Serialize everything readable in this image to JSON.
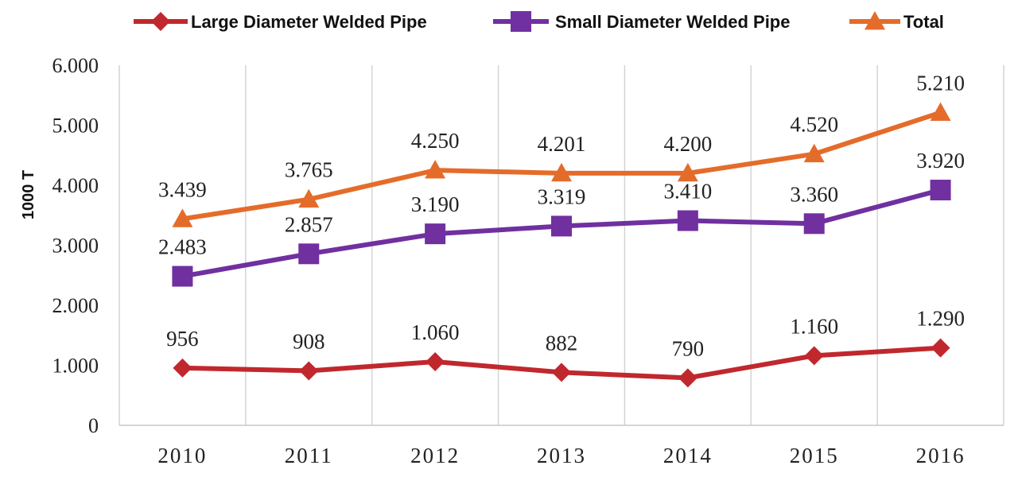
{
  "chart_data": {
    "type": "line",
    "title": "",
    "xlabel": "",
    "ylabel": "1000 T",
    "categories": [
      "2010",
      "2011",
      "2012",
      "2013",
      "2014",
      "2015",
      "2016"
    ],
    "ylim": [
      0,
      6000
    ],
    "yticks": [
      0,
      1000,
      2000,
      3000,
      4000,
      5000,
      6000
    ],
    "ytick_labels": [
      "0",
      "1.000",
      "2.000",
      "3.000",
      "4.000",
      "5.000",
      "6.000"
    ],
    "grid": "vertical",
    "legend_position": "top",
    "series": [
      {
        "name": "Large Diameter Welded Pipe",
        "color": "#c0282d",
        "marker": "diamond",
        "values": [
          956,
          908,
          1060,
          882,
          790,
          1160,
          1290
        ],
        "labels": [
          "956",
          "908",
          "1.060",
          "882",
          "790",
          "1.160",
          "1.290"
        ]
      },
      {
        "name": "Small Diameter Welded Pipe",
        "color": "#7030a0",
        "marker": "square",
        "values": [
          2483,
          2857,
          3190,
          3319,
          3410,
          3360,
          3920
        ],
        "labels": [
          "2.483",
          "2.857",
          "3.190",
          "3.319",
          "3.410",
          "3.360",
          "3.920"
        ]
      },
      {
        "name": "Total",
        "color": "#e46c2a",
        "marker": "triangle",
        "values": [
          3439,
          3765,
          4250,
          4201,
          4200,
          4520,
          5210
        ],
        "labels": [
          "3.439",
          "3.765",
          "4.250",
          "4.201",
          "4.200",
          "4.520",
          "5.210"
        ]
      }
    ]
  }
}
